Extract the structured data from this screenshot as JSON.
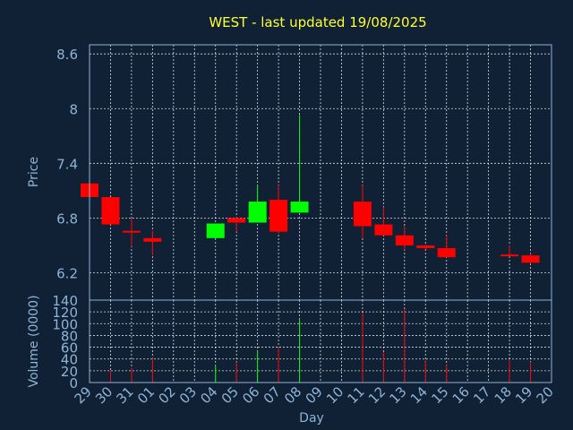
{
  "chart_data": {
    "type": "candlestick",
    "title": "WEST - last updated 19/08/2025",
    "xlabel": "Day",
    "categories": [
      "29",
      "30",
      "31",
      "01",
      "02",
      "03",
      "04",
      "05",
      "06",
      "07",
      "08",
      "09",
      "10",
      "11",
      "12",
      "13",
      "14",
      "15",
      "16",
      "17",
      "18",
      "19",
      "20"
    ],
    "colors": {
      "up": "#00ff00",
      "down": "#ff0000",
      "grid": "#ffffff",
      "text": "#8fb4d6",
      "title": "#ffff33"
    },
    "price_panel": {
      "ylabel": "Price",
      "ylim": [
        5.9,
        8.7
      ],
      "yticks": [
        "8.6",
        "8",
        "7.4",
        "6.8",
        "6.2"
      ],
      "ytick_values": [
        8.6,
        8.0,
        7.4,
        6.8,
        6.2
      ],
      "candles": [
        {
          "day": "29",
          "open": 7.18,
          "high": 7.18,
          "low": 7.03,
          "close": 7.03
        },
        {
          "day": "30",
          "open": 7.03,
          "high": 7.03,
          "low": 6.73,
          "close": 6.73
        },
        {
          "day": "31",
          "open": 6.66,
          "high": 6.8,
          "low": 6.49,
          "close": 6.64
        },
        {
          "day": "01",
          "open": 6.58,
          "high": 6.66,
          "low": 6.39,
          "close": 6.54
        },
        {
          "day": "04",
          "open": 6.58,
          "high": 6.74,
          "low": 6.58,
          "close": 6.74
        },
        {
          "day": "05",
          "open": 6.8,
          "high": 6.81,
          "low": 6.65,
          "close": 6.75
        },
        {
          "day": "06",
          "open": 6.75,
          "high": 7.16,
          "low": 6.75,
          "close": 6.98
        },
        {
          "day": "07",
          "open": 7.0,
          "high": 7.16,
          "low": 6.63,
          "close": 6.65
        },
        {
          "day": "08",
          "open": 6.86,
          "high": 7.93,
          "low": 6.86,
          "close": 6.98
        },
        {
          "day": "11",
          "open": 6.98,
          "high": 7.16,
          "low": 6.58,
          "close": 6.71
        },
        {
          "day": "12",
          "open": 6.73,
          "high": 6.92,
          "low": 6.61,
          "close": 6.61
        },
        {
          "day": "13",
          "open": 6.61,
          "high": 6.71,
          "low": 6.45,
          "close": 6.5
        },
        {
          "day": "14",
          "open": 6.5,
          "high": 6.51,
          "low": 6.46,
          "close": 6.47
        },
        {
          "day": "15",
          "open": 6.47,
          "high": 6.61,
          "low": 6.37,
          "close": 6.37
        },
        {
          "day": "18",
          "open": 6.4,
          "high": 6.5,
          "low": 6.38,
          "close": 6.38
        },
        {
          "day": "19",
          "open": 6.39,
          "high": 6.41,
          "low": 6.3,
          "close": 6.31
        }
      ]
    },
    "volume_panel": {
      "ylabel": "Volume (0000)",
      "ylim": [
        0,
        140
      ],
      "yticks": [
        "140",
        "120",
        "100",
        "80",
        "60",
        "40",
        "20",
        "0"
      ],
      "ytick_values": [
        140,
        120,
        100,
        80,
        60,
        40,
        20,
        0
      ],
      "bars": [
        {
          "day": "30",
          "value": 20,
          "dir": "down"
        },
        {
          "day": "31",
          "value": 25,
          "dir": "down"
        },
        {
          "day": "01",
          "value": 42,
          "dir": "down"
        },
        {
          "day": "04",
          "value": 28,
          "dir": "up"
        },
        {
          "day": "05",
          "value": 35,
          "dir": "down"
        },
        {
          "day": "06",
          "value": 53,
          "dir": "up"
        },
        {
          "day": "07",
          "value": 60,
          "dir": "down"
        },
        {
          "day": "08",
          "value": 108,
          "dir": "up"
        },
        {
          "day": "11",
          "value": 118,
          "dir": "down"
        },
        {
          "day": "12",
          "value": 52,
          "dir": "down"
        },
        {
          "day": "13",
          "value": 125,
          "dir": "down"
        },
        {
          "day": "14",
          "value": 38,
          "dir": "down"
        },
        {
          "day": "15",
          "value": 30,
          "dir": "down"
        },
        {
          "day": "18",
          "value": 38,
          "dir": "down"
        },
        {
          "day": "19",
          "value": 35,
          "dir": "down"
        }
      ]
    }
  }
}
